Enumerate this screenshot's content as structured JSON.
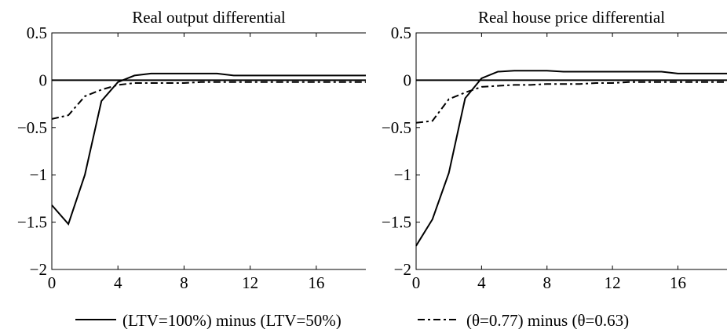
{
  "legend": {
    "position": "bottom",
    "entries": [
      {
        "label": "(LTV=100%) minus (LTV=50%)",
        "style": "solid"
      },
      {
        "label": "(θ=0.77) minus (θ=0.63)",
        "style": "dashdot"
      }
    ]
  },
  "colors": {
    "line": "#000000",
    "background": "#ffffff"
  },
  "chart_data": [
    {
      "type": "line",
      "title": "Real output differential",
      "xlabel": "",
      "ylabel": "",
      "xlim": [
        0,
        19
      ],
      "ylim": [
        -2,
        0.5
      ],
      "xticks": [
        0,
        4,
        8,
        12,
        16
      ],
      "yticks": [
        0.5,
        0,
        -0.5,
        -1,
        -1.5,
        -2
      ],
      "ytick_labels": [
        "0.5",
        "0",
        "−0.5",
        "−1",
        "−1.5",
        "−2"
      ],
      "grid": false,
      "zero_line": true,
      "x": [
        0,
        1,
        2,
        3,
        4,
        5,
        6,
        7,
        8,
        9,
        10,
        11,
        12,
        13,
        14,
        15,
        16,
        17,
        18,
        19
      ],
      "series": [
        {
          "name": "(LTV=100%) minus (LTV=50%)",
          "style": "solid",
          "values": [
            -1.32,
            -1.52,
            -1.0,
            -0.22,
            -0.02,
            0.05,
            0.07,
            0.07,
            0.07,
            0.07,
            0.07,
            0.05,
            0.05,
            0.05,
            0.05,
            0.05,
            0.05,
            0.05,
            0.05,
            0.05
          ]
        },
        {
          "name": "(θ=0.77) minus (θ=0.63)",
          "style": "dashdot",
          "values": [
            -0.41,
            -0.37,
            -0.17,
            -0.1,
            -0.05,
            -0.03,
            -0.03,
            -0.03,
            -0.03,
            -0.02,
            -0.02,
            -0.02,
            -0.02,
            -0.02,
            -0.02,
            -0.02,
            -0.02,
            -0.02,
            -0.02,
            -0.02
          ]
        }
      ]
    },
    {
      "type": "line",
      "title": "Real house price differential",
      "xlabel": "",
      "ylabel": "",
      "xlim": [
        0,
        19
      ],
      "ylim": [
        -2,
        0.5
      ],
      "xticks": [
        0,
        4,
        8,
        12,
        16
      ],
      "yticks": [
        0.5,
        0,
        -0.5,
        -1,
        -1.5,
        -2
      ],
      "ytick_labels": [
        "0.5",
        "0",
        "−0.5",
        "−1",
        "−1.5",
        "−2"
      ],
      "grid": false,
      "zero_line": true,
      "x": [
        0,
        1,
        2,
        3,
        4,
        5,
        6,
        7,
        8,
        9,
        10,
        11,
        12,
        13,
        14,
        15,
        16,
        17,
        18,
        19
      ],
      "series": [
        {
          "name": "(LTV=100%) minus (LTV=50%)",
          "style": "solid",
          "values": [
            -1.75,
            -1.47,
            -0.98,
            -0.19,
            0.02,
            0.09,
            0.1,
            0.1,
            0.1,
            0.09,
            0.09,
            0.09,
            0.09,
            0.09,
            0.09,
            0.09,
            0.07,
            0.07,
            0.07,
            0.07
          ]
        },
        {
          "name": "(θ=0.77) minus (θ=0.63)",
          "style": "dashdot",
          "values": [
            -0.45,
            -0.43,
            -0.2,
            -0.13,
            -0.07,
            -0.06,
            -0.05,
            -0.05,
            -0.04,
            -0.04,
            -0.04,
            -0.03,
            -0.03,
            -0.02,
            -0.02,
            -0.02,
            -0.02,
            -0.02,
            -0.02,
            -0.02
          ]
        }
      ]
    }
  ]
}
